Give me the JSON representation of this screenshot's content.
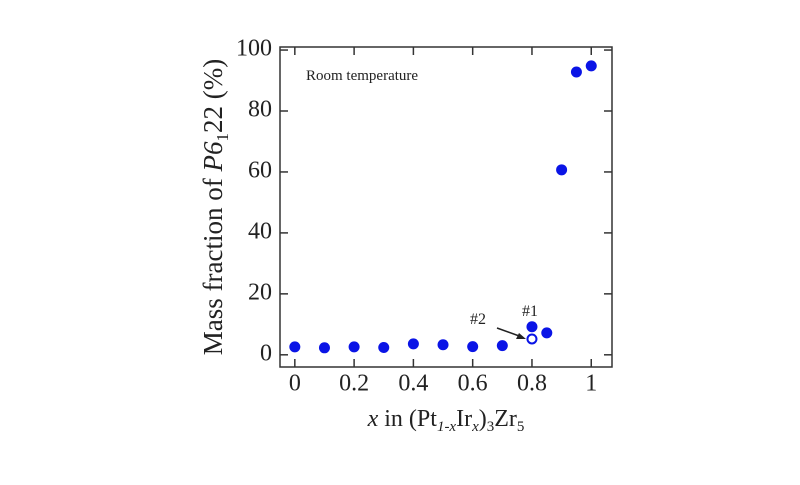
{
  "chart_data": {
    "type": "scatter",
    "annotations": [
      "Room temperature",
      "#1",
      "#2"
    ],
    "ylabel": [
      "Mass fraction of ",
      "P6",
      "1",
      "22 (%)"
    ],
    "xlabel": [
      "x",
      " in  (Pt",
      "1-x",
      "Ir",
      "x",
      ")",
      "3",
      "Zr",
      "5"
    ],
    "series": [
      {
        "color": "#0a14e6",
        "marker": "filled",
        "x": [
          0,
          0.1,
          0.2,
          0.3,
          0.4,
          0.5,
          0.6,
          0.7,
          0.8,
          0.85,
          0.9,
          0.95,
          1.0
        ],
        "values": [
          2.6,
          2.3,
          2.6,
          2.4,
          3.6,
          3.3,
          2.7,
          3.0,
          9.2,
          7.2,
          60.7,
          92.8,
          94.8
        ]
      },
      {
        "color": "#0a14e6",
        "marker": "open",
        "x": [
          0.8
        ],
        "values": [
          5.2
        ]
      }
    ],
    "xlim": [
      -0.05,
      1.07
    ],
    "xticks": [
      0,
      0.2,
      0.4,
      0.6,
      0.8,
      1
    ],
    "ylim": [
      -4,
      101
    ],
    "yticks": [
      0,
      20,
      40,
      60,
      80,
      100
    ],
    "grid": false
  }
}
